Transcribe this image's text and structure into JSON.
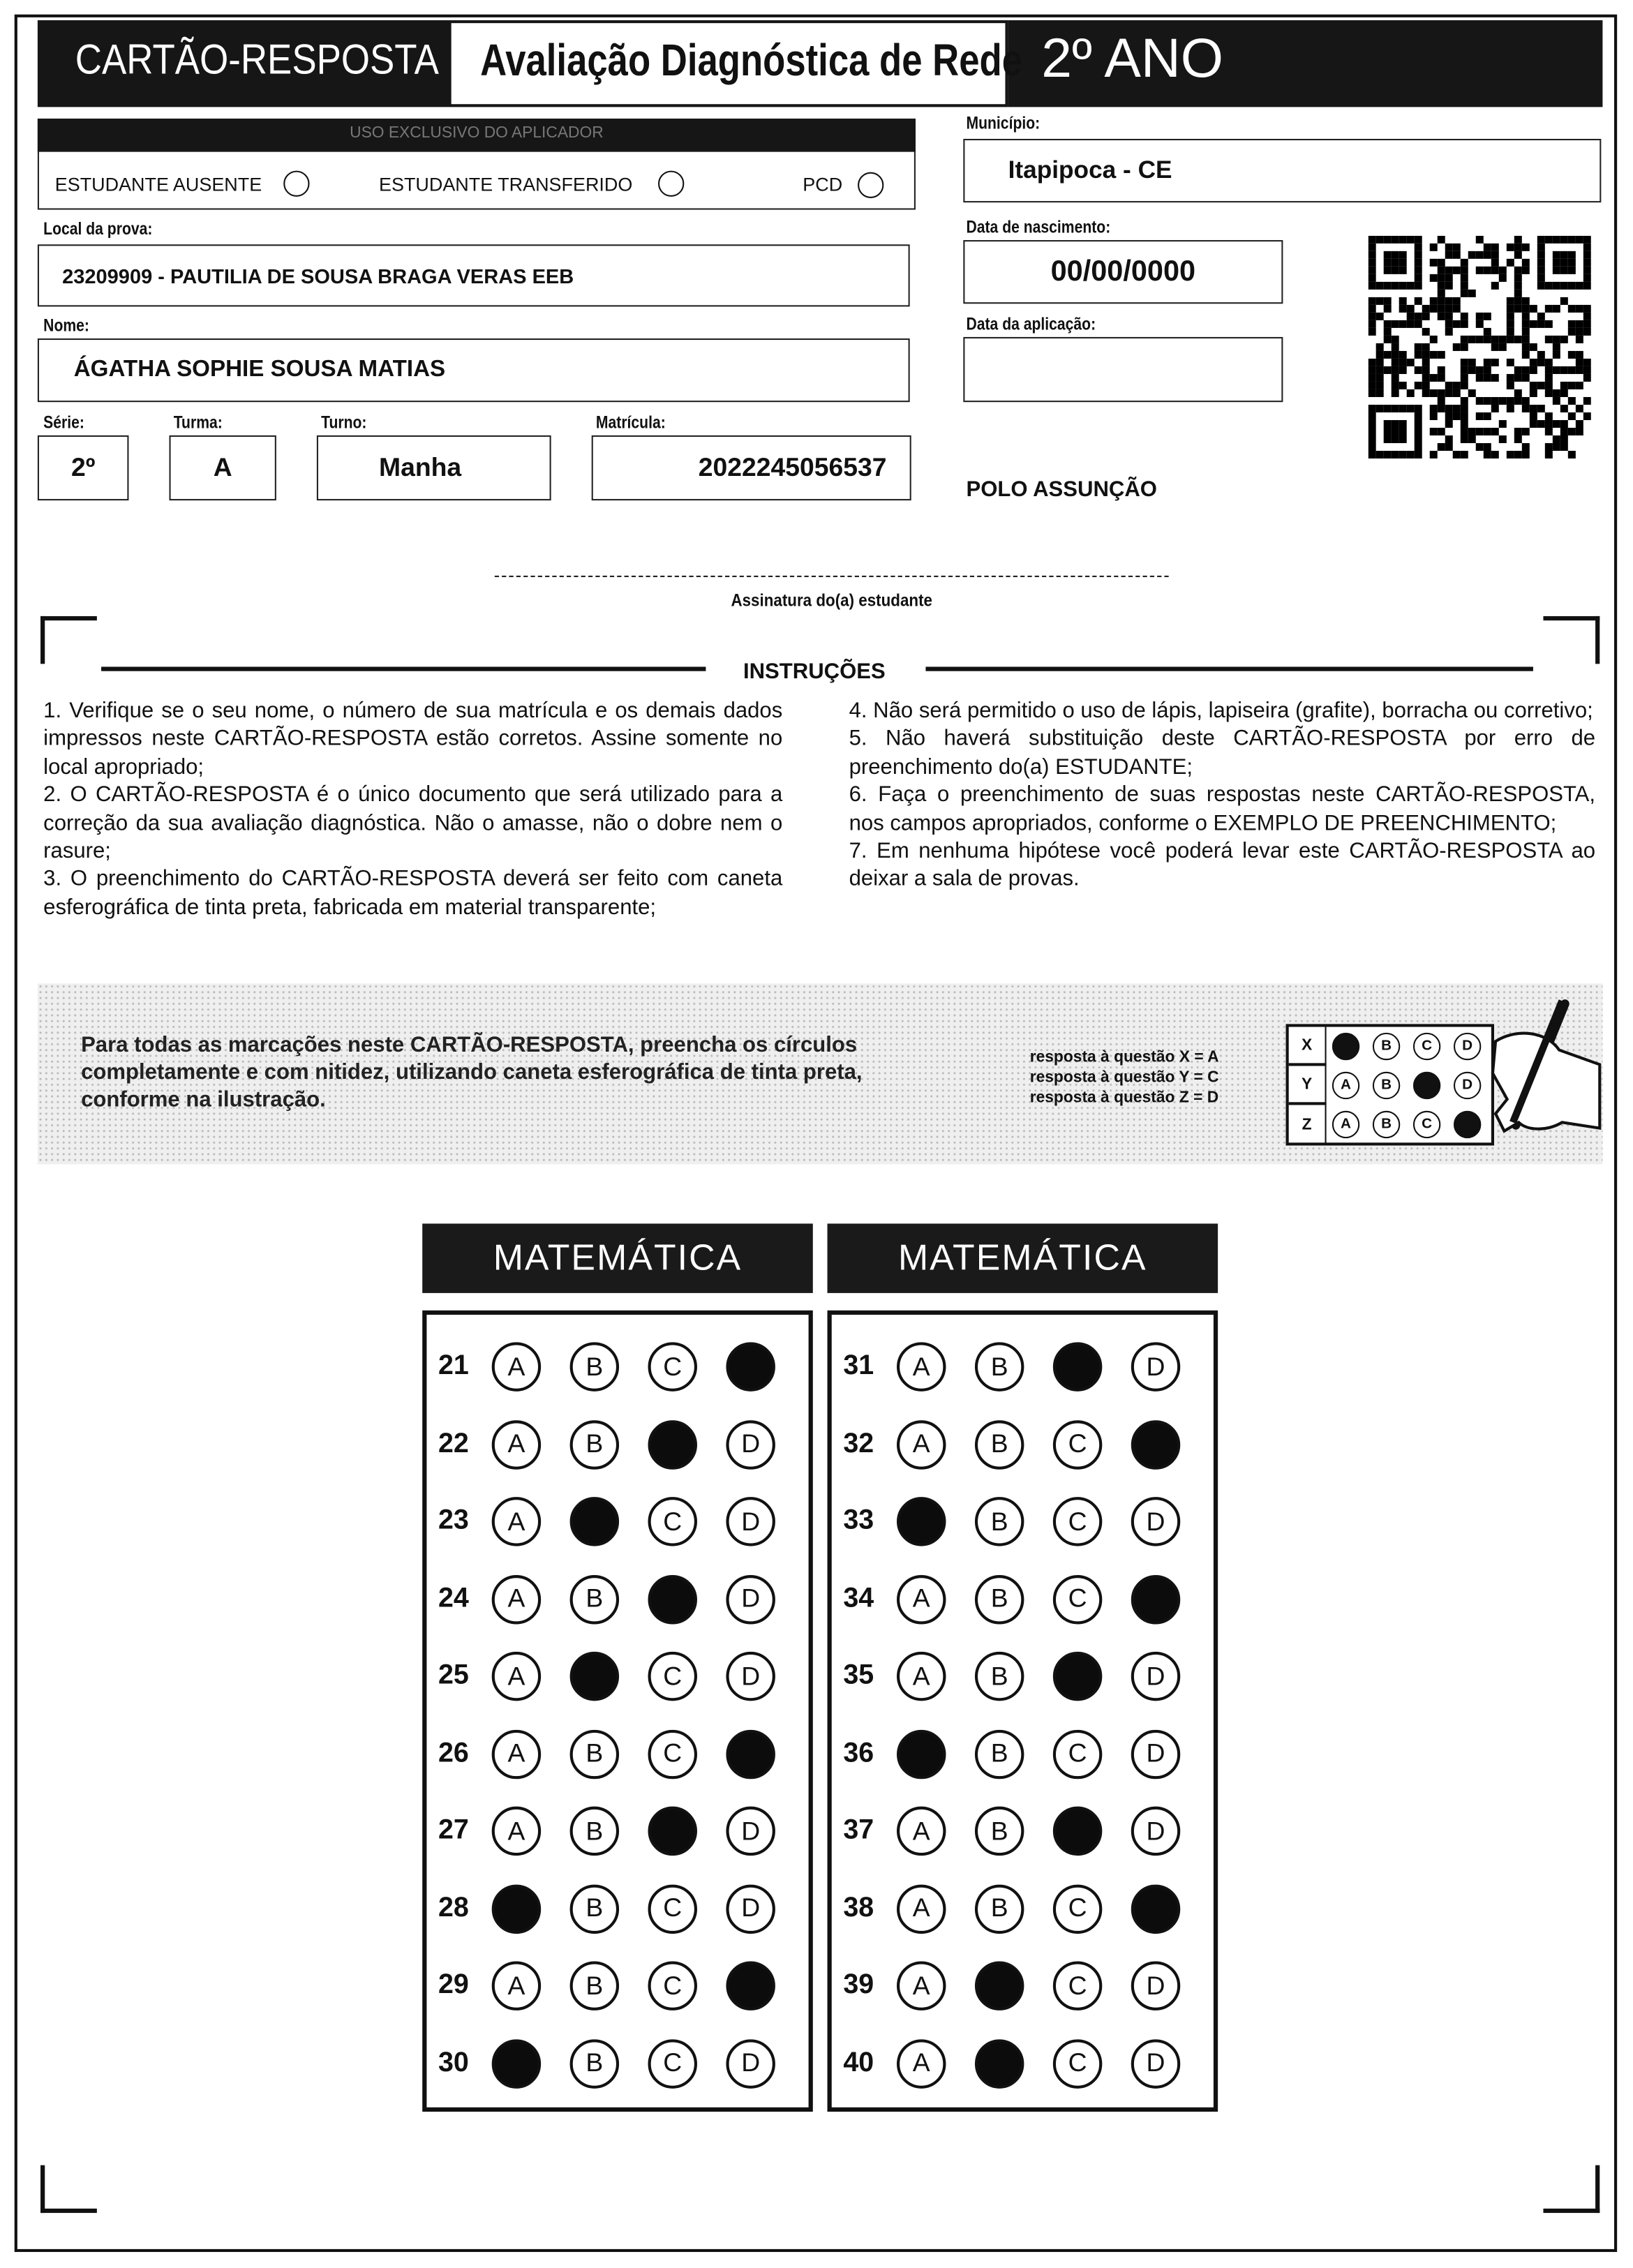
{
  "header": {
    "title": "CARTÃO-RESPOSTA",
    "exam": "Avaliação Diagnóstica de Rede",
    "grade": "2º ANO"
  },
  "applicator": {
    "title": "USO EXCLUSIVO DO APLICADOR",
    "absent": "ESTUDANTE AUSENTE",
    "transferred": "ESTUDANTE TRANSFERIDO",
    "pcd": "PCD"
  },
  "fields": {
    "municipio_label": "Município:",
    "municipio": "Itapipoca - CE",
    "local_label": "Local da prova:",
    "local": "23209909 - PAUTILIA DE SOUSA BRAGA VERAS EEB",
    "nascimento_label": "Data de nascimento:",
    "nascimento": "00/00/0000",
    "nome_label": "Nome:",
    "nome": "ÁGATHA SOPHIE SOUSA MATIAS",
    "aplicacao_label": "Data da aplicação:",
    "aplicacao": "",
    "serie_label": "Série:",
    "serie": "2º",
    "turma_label": "Turma:",
    "turma": "A",
    "turno_label": "Turno:",
    "turno": "Manha",
    "matricula_label": "Matrícula:",
    "matricula": "2022245056537",
    "polo": "POLO ASSUNÇÃO"
  },
  "signature": "Assinatura do(a) estudante",
  "instructions": {
    "title": "INSTRUÇÕES",
    "left": [
      "1. Verifique se o seu nome, o número de sua matrícula e os demais dados impressos neste CARTÃO-RESPOSTA estão corretos. Assine somente no local apropriado;",
      "2. O CARTÃO-RESPOSTA é o único documento que será utilizado para a correção da sua avaliação diagnóstica. Não o amasse, não o dobre nem o rasure;",
      "3. O preenchimento do CARTÃO-RESPOSTA deverá ser feito com caneta esferográfica de tinta preta, fabricada em material transparente;"
    ],
    "right": [
      "4. Não será permitido o uso de lápis, lapiseira (grafite), borracha ou corretivo;",
      "5. Não haverá substituição deste CARTÃO-RESPOSTA por erro de preenchimento do(a) ESTUDANTE;",
      "6. Faça o preenchimento de suas respostas neste CARTÃO-RESPOSTA, nos campos apropriados, conforme o EXEMPLO DE PREENCHIMENTO;",
      "7. Em nenhuma hipótese você poderá levar este CARTÃO-RESPOSTA ao deixar a sala de provas."
    ]
  },
  "example": {
    "text": "Para todas as marcações neste CARTÃO-RESPOSTA, preencha os círculos completamente e com nitidez, utilizando caneta esferográfica de tinta preta, conforme na ilustração.",
    "answers": [
      "resposta à questão X = A",
      "resposta à questão Y = C",
      "resposta à questão Z = D"
    ],
    "rows": [
      {
        "q": "X",
        "filled": "A"
      },
      {
        "q": "Y",
        "filled": "C"
      },
      {
        "q": "Z",
        "filled": "D"
      }
    ]
  },
  "options": [
    "A",
    "B",
    "C",
    "D"
  ],
  "sections": [
    {
      "subject": "MATEMÁTICA",
      "questions": [
        {
          "n": "21",
          "marked": "D"
        },
        {
          "n": "22",
          "marked": "C"
        },
        {
          "n": "23",
          "marked": "B"
        },
        {
          "n": "24",
          "marked": "C"
        },
        {
          "n": "25",
          "marked": "B"
        },
        {
          "n": "26",
          "marked": "D"
        },
        {
          "n": "27",
          "marked": "C"
        },
        {
          "n": "28",
          "marked": "A"
        },
        {
          "n": "29",
          "marked": "D"
        },
        {
          "n": "30",
          "marked": "A"
        }
      ]
    },
    {
      "subject": "MATEMÁTICA",
      "questions": [
        {
          "n": "31",
          "marked": "C"
        },
        {
          "n": "32",
          "marked": "D"
        },
        {
          "n": "33",
          "marked": "A"
        },
        {
          "n": "34",
          "marked": "D"
        },
        {
          "n": "35",
          "marked": "C"
        },
        {
          "n": "36",
          "marked": "A"
        },
        {
          "n": "37",
          "marked": "C"
        },
        {
          "n": "38",
          "marked": "D"
        },
        {
          "n": "39",
          "marked": "B"
        },
        {
          "n": "40",
          "marked": "B"
        }
      ]
    }
  ]
}
